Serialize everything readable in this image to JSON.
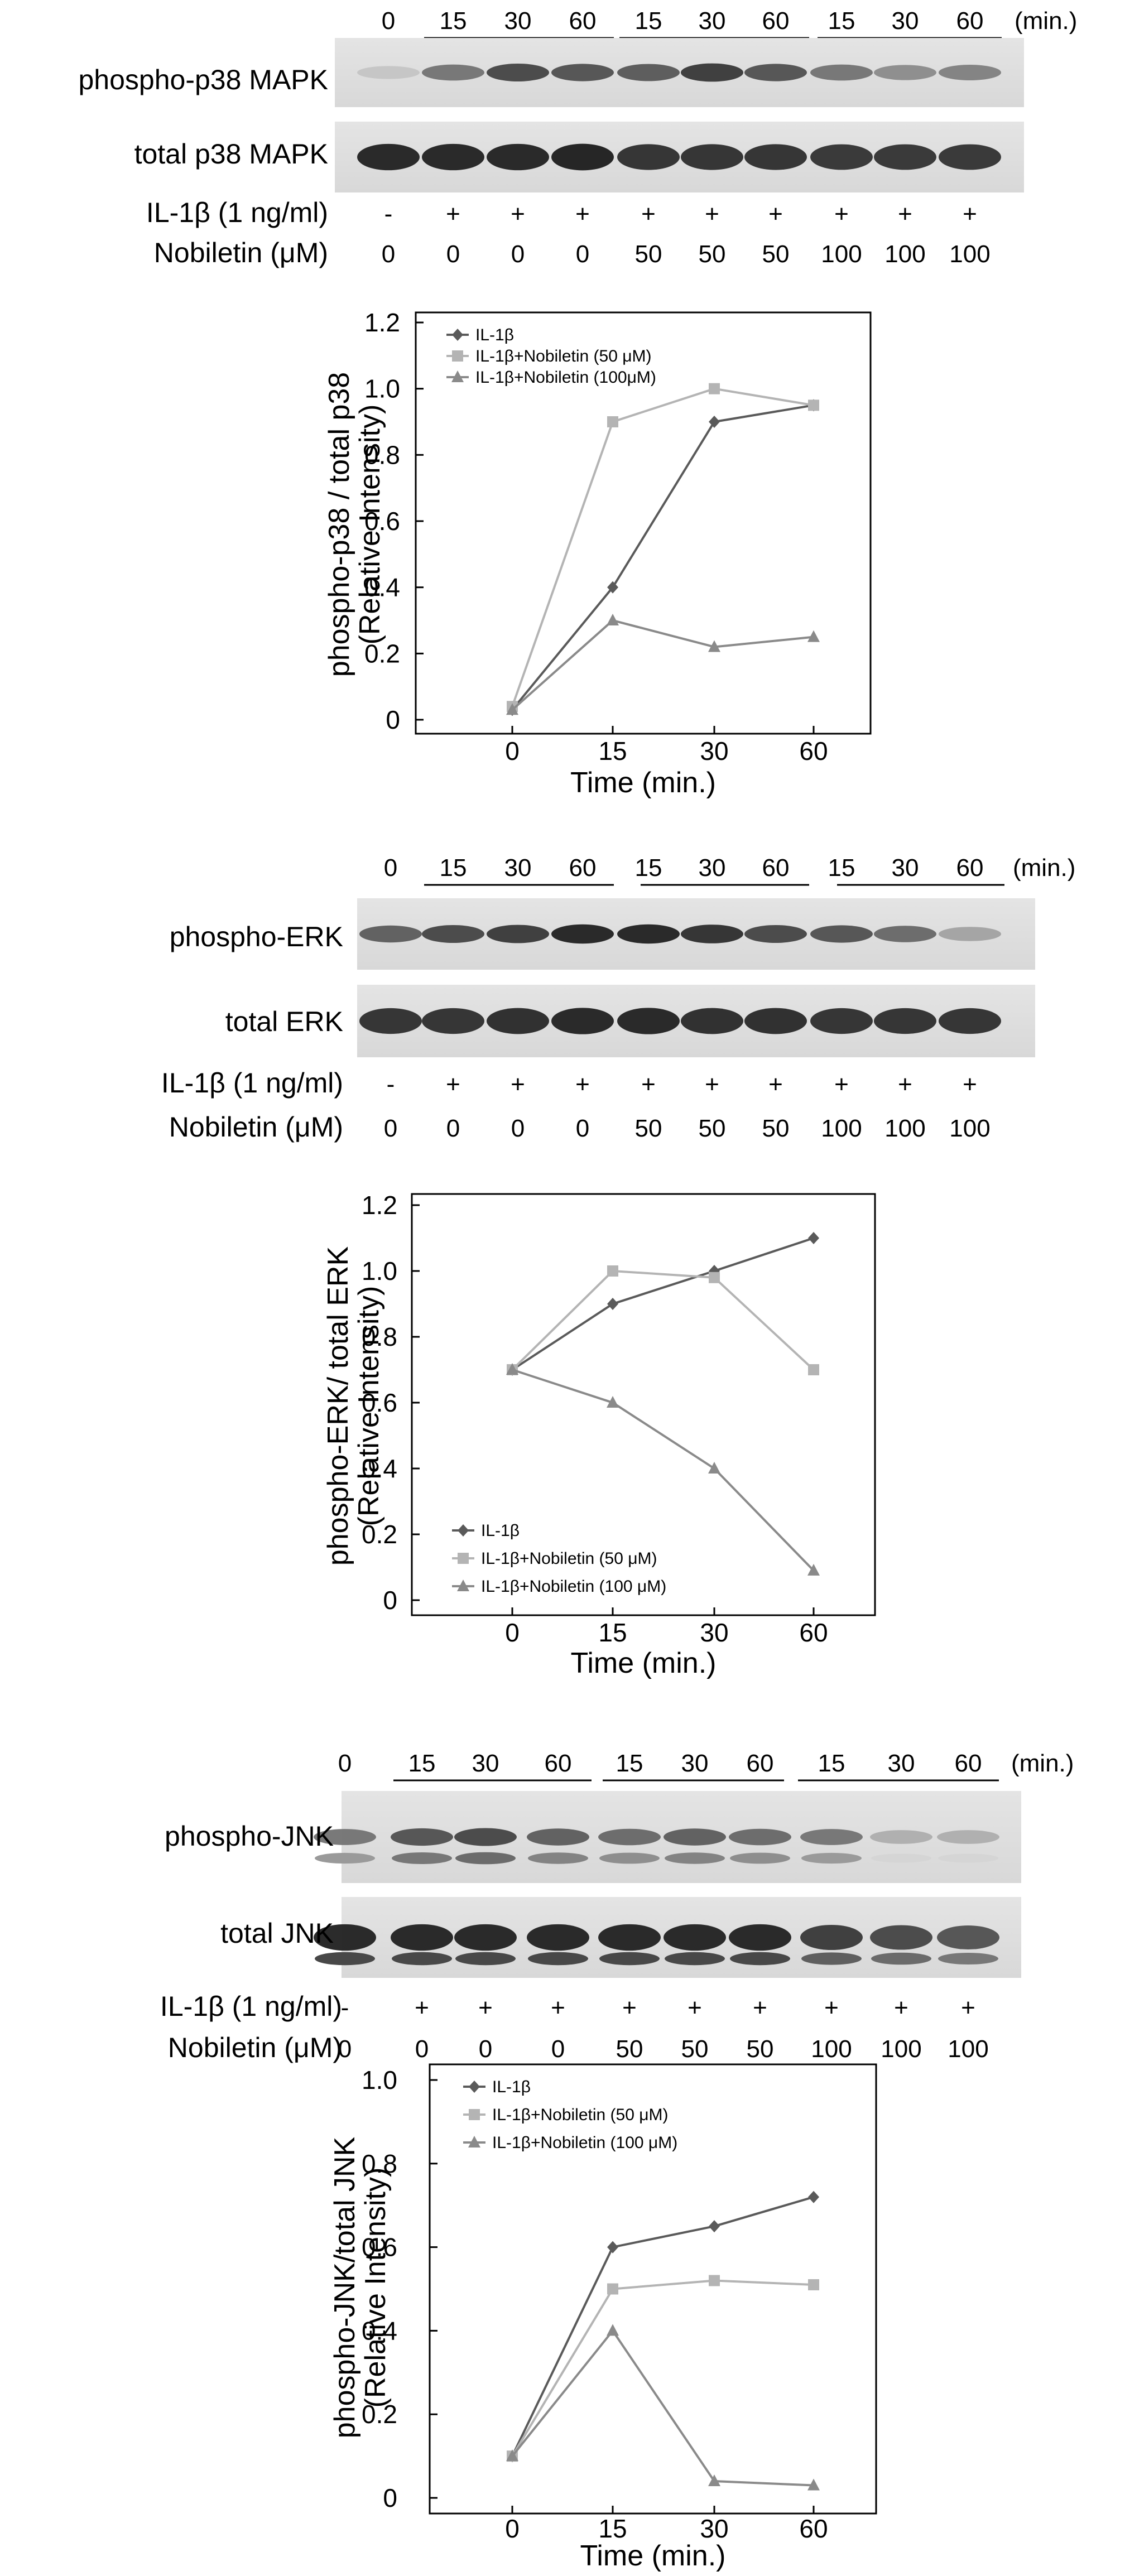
{
  "panels": [
    {
      "time_lanes": [
        "0",
        "15",
        "30",
        "60",
        "15",
        "30",
        "60",
        "15",
        "30",
        "60"
      ],
      "time_unit": "(min.)",
      "phospho_label": "phospho-p38 MAPK",
      "total_label": "total p38 MAPK",
      "il1b_label": "IL-1β (1 ng/ml)",
      "il1b_values": [
        "-",
        "+",
        "+",
        "+",
        "+",
        "+",
        "+",
        "+",
        "+",
        "+"
      ],
      "nob_label": "Nobiletin (μM)",
      "nob_values": [
        "0",
        "0",
        "0",
        "0",
        "50",
        "50",
        "50",
        "100",
        "100",
        "100"
      ]
    },
    {
      "time_lanes": [
        "0",
        "15",
        "30",
        "60",
        "15",
        "30",
        "60",
        "15",
        "30",
        "60"
      ],
      "time_unit": "(min.)",
      "phospho_label": "phospho-ERK",
      "total_label": "total ERK",
      "il1b_label": "IL-1β (1 ng/ml)",
      "il1b_values": [
        "-",
        "+",
        "+",
        "+",
        "+",
        "+",
        "+",
        "+",
        "+",
        "+"
      ],
      "nob_label": "Nobiletin (μM)",
      "nob_values": [
        "0",
        "0",
        "0",
        "0",
        "50",
        "50",
        "50",
        "100",
        "100",
        "100"
      ]
    },
    {
      "time_lanes": [
        "0",
        "15",
        "30",
        "60",
        "15",
        "30",
        "60",
        "15",
        "30",
        "60"
      ],
      "time_unit": "(min.)",
      "phospho_label": "phospho-JNK",
      "total_label": "total JNK",
      "il1b_label": "IL-1β (1 ng/ml)",
      "il1b_values": [
        "-",
        "+",
        "+",
        "+",
        "+",
        "+",
        "+",
        "+",
        "+",
        "+"
      ],
      "nob_label": "Nobiletin (μM)",
      "nob_values": [
        "0",
        "0",
        "0",
        "0",
        "50",
        "50",
        "50",
        "100",
        "100",
        "100"
      ]
    }
  ],
  "chart_data": [
    {
      "type": "line",
      "categories": [
        "0",
        "15",
        "30",
        "60"
      ],
      "ylabel": "phospho-p38 / total p38",
      "ylabel2": "(Relative Intensity)",
      "xlabel": "Time (min.)",
      "ylim": [
        0,
        1.2
      ],
      "yticks": [
        "0",
        "0.2",
        "0.4",
        "0.6",
        "0.8",
        "1.0",
        "1.2"
      ],
      "grid": false,
      "legend_position": "top-left",
      "series": [
        {
          "name": "IL-1β",
          "values": [
            0.03,
            0.4,
            0.9,
            0.95
          ],
          "color": "#5a5a5a",
          "marker": "diamond"
        },
        {
          "name": "IL-1β+Nobiletin (50 μM)",
          "values": [
            0.04,
            0.9,
            1.0,
            0.95
          ],
          "color": "#b4b4b4",
          "marker": "square"
        },
        {
          "name": "IL-1β+Nobiletin (100μM)",
          "values": [
            0.03,
            0.3,
            0.22,
            0.25
          ],
          "color": "#8a8a8a",
          "marker": "triangle"
        }
      ]
    },
    {
      "type": "line",
      "categories": [
        "0",
        "15",
        "30",
        "60"
      ],
      "ylabel": "phospho-ERK/ total ERK",
      "ylabel2": "(Relative Intensity)",
      "xlabel": "Time (min.)",
      "ylim": [
        0,
        1.2
      ],
      "yticks": [
        "0",
        "0.2",
        "0.4",
        "0.6",
        "0.8",
        "1.0",
        "1.2"
      ],
      "grid": false,
      "legend_position": "bottom-left",
      "series": [
        {
          "name": "IL-1β",
          "values": [
            0.7,
            0.9,
            1.0,
            1.1
          ],
          "color": "#5a5a5a",
          "marker": "diamond"
        },
        {
          "name": "IL-1β+Nobiletin (50 μM)",
          "values": [
            0.7,
            1.0,
            0.98,
            0.7
          ],
          "color": "#b4b4b4",
          "marker": "square"
        },
        {
          "name": "IL-1β+Nobiletin (100 μM)",
          "values": [
            0.7,
            0.6,
            0.4,
            0.09
          ],
          "color": "#8a8a8a",
          "marker": "triangle"
        }
      ]
    },
    {
      "type": "line",
      "categories": [
        "0",
        "15",
        "30",
        "60"
      ],
      "ylabel": "phospho-JNK/total JNK",
      "ylabel2": "(Relative Intensity)",
      "xlabel": "Time (min.)",
      "ylim": [
        0,
        1.0
      ],
      "yticks": [
        "0",
        "0.2",
        "0.4",
        "0.6",
        "0.8",
        "1.0"
      ],
      "grid": false,
      "legend_position": "top-left",
      "series": [
        {
          "name": "IL-1β",
          "values": [
            0.1,
            0.6,
            0.65,
            0.72
          ],
          "color": "#5a5a5a",
          "marker": "diamond"
        },
        {
          "name": "IL-1β+Nobiletin (50 μM)",
          "values": [
            0.1,
            0.5,
            0.52,
            0.51
          ],
          "color": "#b4b4b4",
          "marker": "square"
        },
        {
          "name": "IL-1β+Nobiletin (100 μM)",
          "values": [
            0.1,
            0.4,
            0.04,
            0.03
          ],
          "color": "#8a8a8a",
          "marker": "triangle"
        }
      ]
    }
  ]
}
